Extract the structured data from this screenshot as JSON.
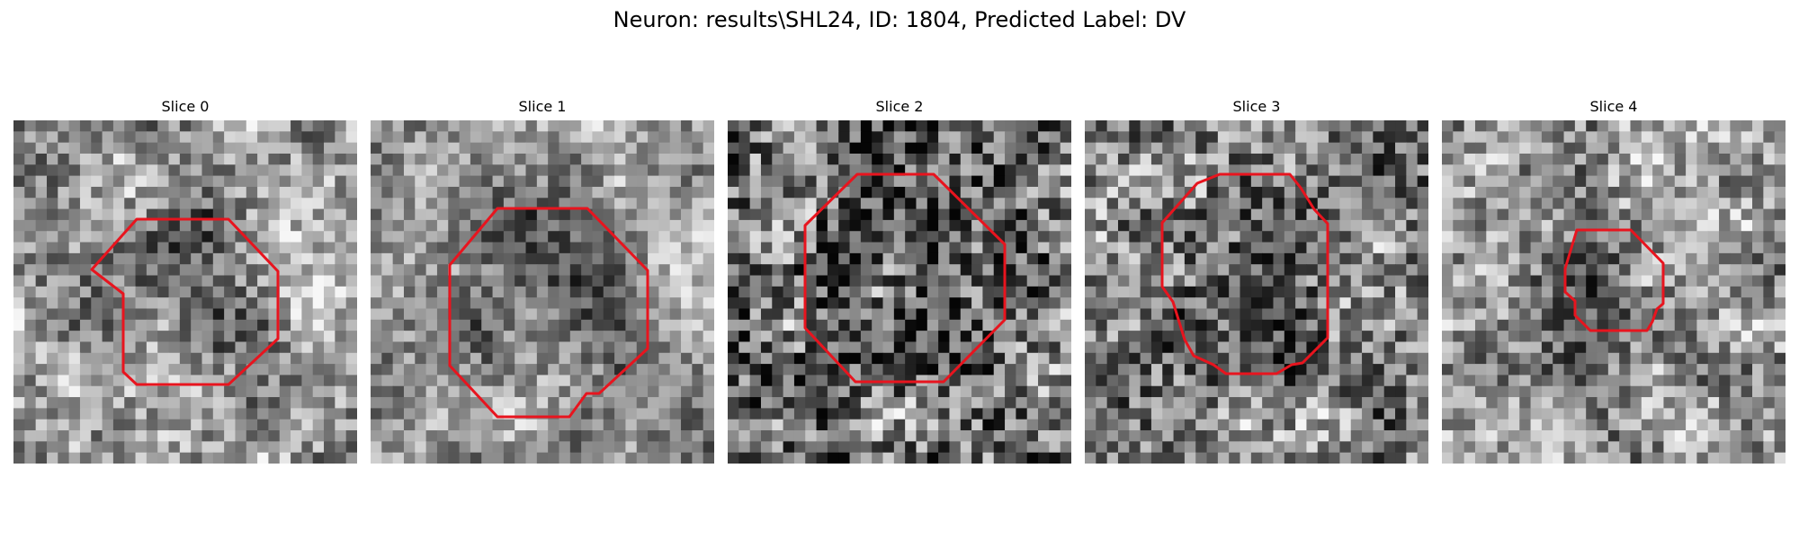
{
  "figure": {
    "title": "Neuron: results\\SHL24, ID: 1804, Predicted Label: DV"
  },
  "colors": {
    "background": "#ffffff",
    "contour": "#e8141e",
    "image_colormap": "gray"
  },
  "slices": [
    {
      "title": "Slice 0"
    },
    {
      "title": "Slice 1"
    },
    {
      "title": "Slice 2"
    },
    {
      "title": "Slice 3"
    },
    {
      "title": "Slice 4"
    }
  ]
}
